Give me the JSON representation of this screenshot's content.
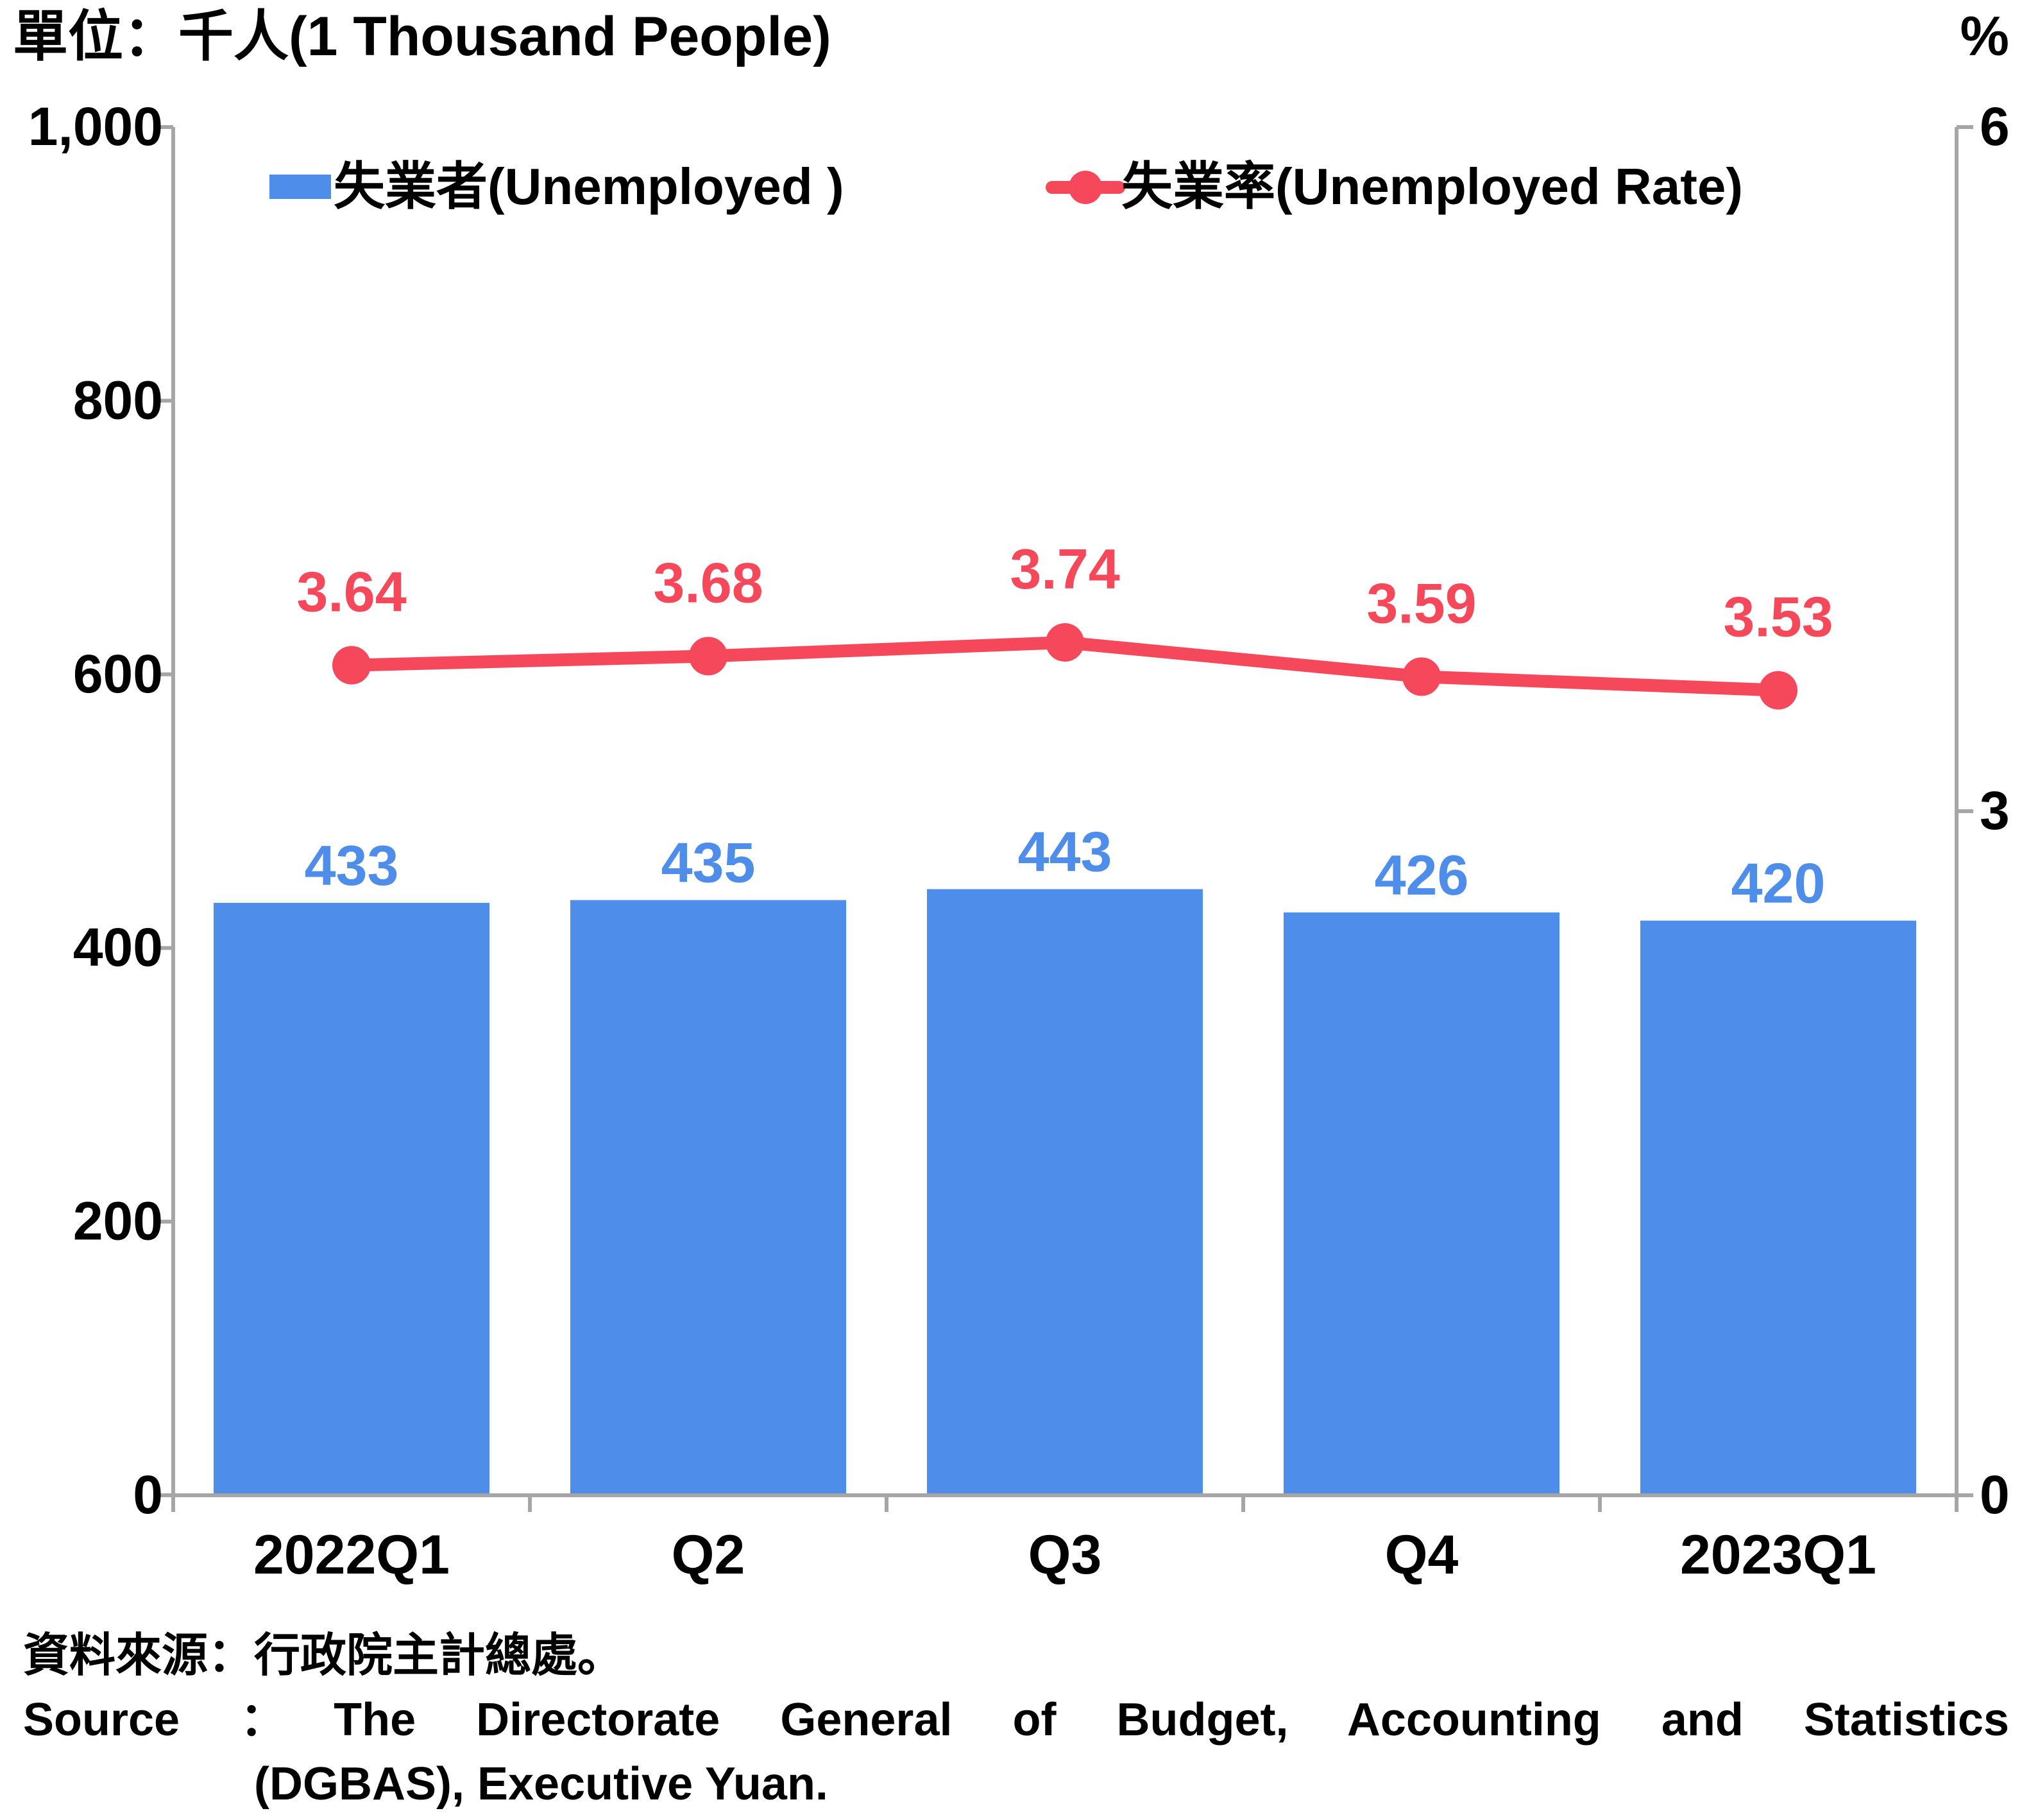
{
  "chart_data": {
    "type": "bar+line",
    "unit_left": "單位：千人(1 Thousand People)",
    "unit_right": "%",
    "categories": [
      "2022Q1",
      "Q2",
      "Q3",
      "Q4",
      "2023Q1"
    ],
    "series": [
      {
        "name": "失業者(Unemployed )",
        "type": "bar",
        "axis": "left",
        "values": [
          433,
          435,
          443,
          426,
          420
        ],
        "color": "#4f8dea"
      },
      {
        "name": "失業率(Unemployed Rate)",
        "type": "line",
        "axis": "right",
        "values": [
          3.64,
          3.68,
          3.74,
          3.59,
          3.53
        ],
        "color": "#f5495b"
      }
    ],
    "y_left": {
      "range": [
        0,
        1000
      ],
      "ticks": [
        "0",
        "200",
        "400",
        "600",
        "800",
        "1,000"
      ],
      "tick_values": [
        0,
        200,
        400,
        600,
        800,
        1000
      ]
    },
    "y_right": {
      "range": [
        0,
        6
      ],
      "ticks": [
        "0",
        "3",
        "6"
      ],
      "tick_values": [
        0,
        3,
        6
      ]
    },
    "legend": "top",
    "grid": false
  },
  "source": {
    "zh": "資料來源：行政院主計總處。",
    "en_line1": "Source ：The Directorate General of Budget, Accounting and Statistics",
    "en_line2": "(DGBAS), Executive Yuan."
  }
}
